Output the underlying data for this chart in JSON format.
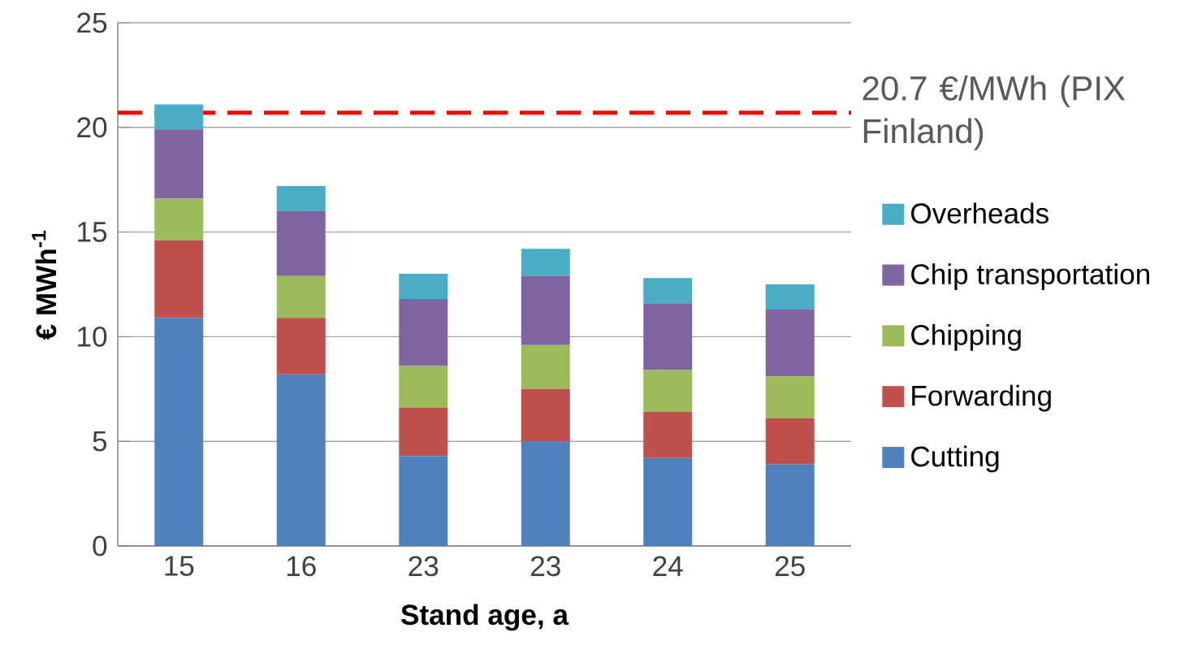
{
  "chart_data": {
    "type": "bar",
    "stacked": true,
    "xlabel": "Stand age, a",
    "ylabel": "€ MWh$^{-1}$",
    "categories": [
      "15",
      "16",
      "23",
      "23",
      "24",
      "25"
    ],
    "series": [
      {
        "name": "Cutting",
        "color": "#4f81bd",
        "values": [
          10.9,
          8.2,
          4.3,
          5.0,
          4.2,
          3.9
        ]
      },
      {
        "name": "Forwarding",
        "color": "#c0504d",
        "values": [
          3.7,
          2.7,
          2.3,
          2.5,
          2.2,
          2.2
        ]
      },
      {
        "name": "Chipping",
        "color": "#9bbb59",
        "values": [
          2.0,
          2.0,
          2.0,
          2.1,
          2.0,
          2.0
        ]
      },
      {
        "name": "Chip transportation",
        "color": "#8064a2",
        "values": [
          3.3,
          3.1,
          3.2,
          3.3,
          3.2,
          3.2
        ]
      },
      {
        "name": "Overheads",
        "color": "#4bacc6",
        "values": [
          1.2,
          1.2,
          1.2,
          1.3,
          1.2,
          1.2
        ]
      }
    ],
    "ylim": [
      0,
      25
    ],
    "yticks": [
      0,
      5,
      10,
      15,
      20,
      25
    ],
    "grid": "y",
    "legend": "right",
    "ref_lines": [
      {
        "axis": "y",
        "value": 20.7,
        "label": "20.7 €/MWh (PIX Finland)",
        "color": "#ff0000",
        "line_style": "dashed"
      }
    ]
  }
}
